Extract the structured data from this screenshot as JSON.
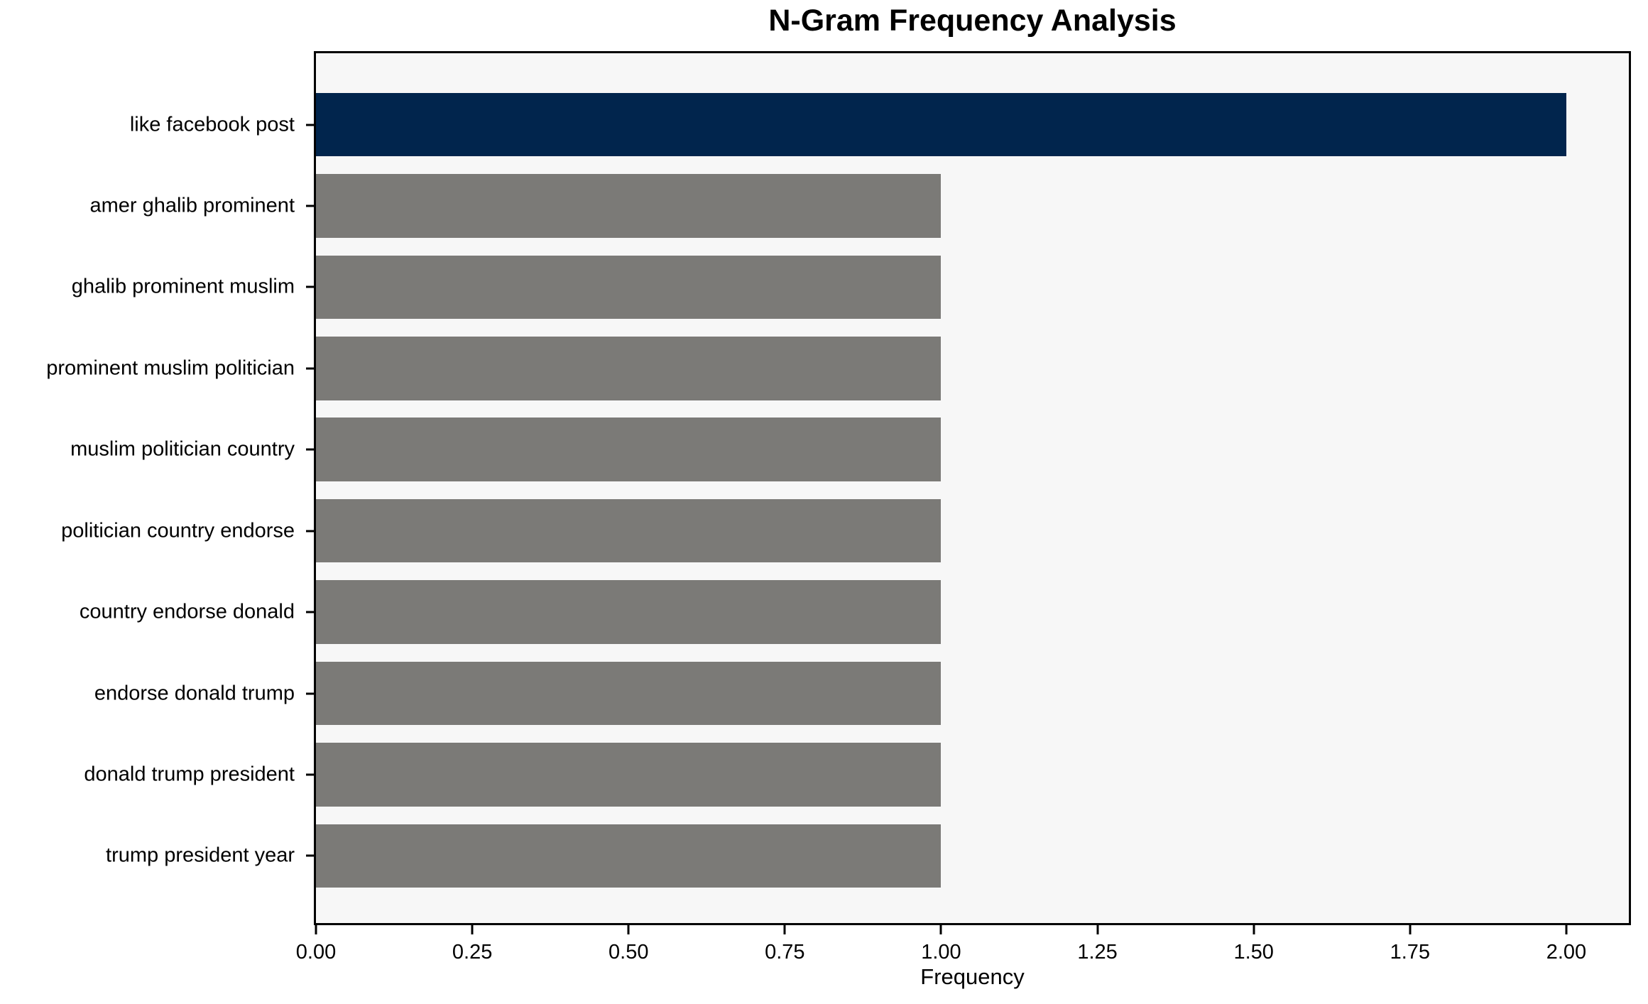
{
  "chart_data": {
    "type": "bar",
    "orientation": "horizontal",
    "title": "N-Gram Frequency Analysis",
    "xlabel": "Frequency",
    "ylabel": "",
    "categories": [
      "like facebook post",
      "amer ghalib prominent",
      "ghalib prominent muslim",
      "prominent muslim politician",
      "muslim politician country",
      "politician country endorse",
      "country endorse donald",
      "endorse donald trump",
      "donald trump president",
      "trump president year"
    ],
    "values": [
      2,
      1,
      1,
      1,
      1,
      1,
      1,
      1,
      1,
      1
    ],
    "bar_colors": [
      "#01254d",
      "#7b7a77",
      "#7b7a77",
      "#7b7a77",
      "#7b7a77",
      "#7b7a77",
      "#7b7a77",
      "#7b7a77",
      "#7b7a77",
      "#7b7a77"
    ],
    "xlim": [
      0,
      2.1
    ],
    "xticks": [
      {
        "value": 0.0,
        "label": "0.00"
      },
      {
        "value": 0.25,
        "label": "0.25"
      },
      {
        "value": 0.5,
        "label": "0.50"
      },
      {
        "value": 0.75,
        "label": "0.75"
      },
      {
        "value": 1.0,
        "label": "1.00"
      },
      {
        "value": 1.25,
        "label": "1.25"
      },
      {
        "value": 1.5,
        "label": "1.50"
      },
      {
        "value": 1.75,
        "label": "1.75"
      },
      {
        "value": 2.0,
        "label": "2.00"
      }
    ],
    "grid": false,
    "legend": null,
    "colors": {
      "highlight_bar": "#01254d",
      "default_bar": "#7b7a77",
      "plot_background": "#f7f7f7",
      "figure_background": "#ffffff",
      "spine": "#000000",
      "text": "#000000"
    }
  }
}
